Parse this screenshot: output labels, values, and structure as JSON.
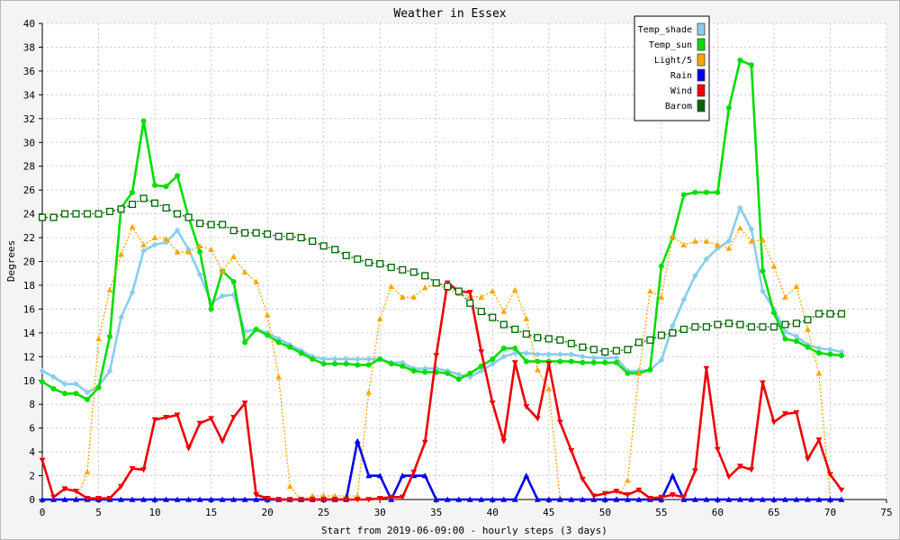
{
  "chart_data": {
    "type": "line",
    "title": "Weather in Essex",
    "xlabel": "Start from 2019-06-09:00 - hourly steps (3 days)",
    "ylabel": "Degrees",
    "xlim": [
      0,
      75
    ],
    "ylim": [
      0,
      40
    ],
    "xticks": [
      0,
      5,
      10,
      15,
      20,
      25,
      30,
      35,
      40,
      45,
      50,
      55,
      60,
      65,
      70,
      75
    ],
    "yticks": [
      0,
      2,
      4,
      6,
      8,
      10,
      12,
      14,
      16,
      18,
      20,
      22,
      24,
      26,
      28,
      30,
      32,
      34,
      36,
      38,
      40
    ],
    "grid": true,
    "legend_position": "top-right",
    "x": [
      0,
      1,
      2,
      3,
      4,
      5,
      6,
      7,
      8,
      9,
      10,
      11,
      12,
      13,
      14,
      15,
      16,
      17,
      18,
      19,
      20,
      21,
      22,
      23,
      24,
      25,
      26,
      27,
      28,
      29,
      30,
      31,
      32,
      33,
      34,
      35,
      36,
      37,
      38,
      39,
      40,
      41,
      42,
      43,
      44,
      45,
      46,
      47,
      48,
      49,
      50,
      51,
      52,
      53,
      54,
      55,
      56,
      57,
      58,
      59,
      60,
      61,
      62,
      63,
      64,
      65,
      66,
      67,
      68,
      69,
      70,
      71
    ],
    "series": [
      {
        "name": "Temp_shade",
        "color": "#87ceeb",
        "marker": "diamond",
        "dashed": false,
        "values": [
          10.8,
          10.3,
          9.7,
          9.7,
          9.0,
          9.5,
          10.8,
          15.3,
          17.4,
          20.9,
          21.4,
          21.6,
          22.6,
          21.0,
          18.9,
          16.5,
          17.1,
          17.2,
          14.1,
          14.3,
          14.0,
          13.5,
          13.0,
          12.5,
          12.0,
          11.8,
          11.8,
          11.8,
          11.8,
          11.8,
          11.8,
          11.5,
          11.5,
          11.0,
          11.0,
          11.0,
          10.8,
          10.5,
          10.3,
          10.8,
          11.4,
          12.0,
          12.3,
          12.3,
          12.2,
          12.2,
          12.2,
          12.2,
          12.0,
          11.9,
          11.9,
          11.9,
          10.8,
          10.8,
          10.9,
          11.7,
          14.6,
          16.8,
          18.8,
          20.2,
          21.1,
          21.7,
          24.5,
          22.7,
          17.5,
          16.0,
          14.1,
          13.7,
          13.0,
          12.7,
          12.6,
          12.4
        ]
      },
      {
        "name": "Temp_sun",
        "color": "#00dd00",
        "marker": "circle",
        "dashed": false,
        "values": [
          9.9,
          9.3,
          8.9,
          8.9,
          8.4,
          9.4,
          13.7,
          24.5,
          25.8,
          31.8,
          26.4,
          26.3,
          27.2,
          23.7,
          20.8,
          16.0,
          19.2,
          18.3,
          13.2,
          14.3,
          13.8,
          13.2,
          12.8,
          12.3,
          11.8,
          11.4,
          11.4,
          11.4,
          11.3,
          11.3,
          11.8,
          11.4,
          11.2,
          10.8,
          10.7,
          10.7,
          10.6,
          10.1,
          10.6,
          11.2,
          11.8,
          12.7,
          12.7,
          11.6,
          11.6,
          11.6,
          11.6,
          11.6,
          11.5,
          11.5,
          11.5,
          11.5,
          10.6,
          10.6,
          10.9,
          19.6,
          22.0,
          25.6,
          25.8,
          25.8,
          25.8,
          32.9,
          36.9,
          36.5,
          19.2,
          15.7,
          13.5,
          13.3,
          12.8,
          12.3,
          12.2,
          12.1
        ]
      },
      {
        "name": "Light/5",
        "color": "#ffa500",
        "marker": "triangle-up",
        "dashed": true,
        "values": [
          0,
          0,
          0,
          0,
          2.3,
          13.5,
          17.6,
          20.6,
          22.9,
          21.4,
          22.0,
          21.9,
          20.8,
          20.8,
          21.3,
          21.0,
          19.2,
          20.4,
          19.1,
          18.3,
          15.5,
          10.3,
          1.1,
          0,
          0.3,
          0.3,
          0.3,
          0.3,
          0.3,
          9.0,
          15.2,
          17.9,
          17.0,
          17.0,
          17.8,
          18.1,
          17.7,
          17.3,
          17.1,
          17.0,
          17.5,
          15.8,
          17.6,
          15.2,
          10.9,
          9.3,
          0.1,
          0,
          0,
          0,
          0,
          0,
          1.6,
          10.6,
          17.5,
          17.0,
          22.1,
          21.4,
          21.7,
          21.7,
          21.4,
          21.1,
          22.8,
          21.7,
          21.8,
          19.6,
          17.0,
          17.9,
          14.3,
          10.6,
          0,
          0
        ]
      },
      {
        "name": "Rain",
        "color": "#0000ee",
        "marker": "triangle-up",
        "dashed": false,
        "values": [
          0,
          0,
          0,
          0,
          0,
          0,
          0,
          0,
          0,
          0,
          0,
          0,
          0,
          0,
          0,
          0,
          0,
          0,
          0,
          0,
          0,
          0,
          0,
          0,
          0,
          0,
          0,
          0,
          4.9,
          2.0,
          2.0,
          0,
          2.0,
          2.0,
          2.0,
          0,
          0,
          0,
          0,
          0,
          0,
          0,
          0,
          2.0,
          0,
          0,
          0,
          0,
          0,
          0,
          0,
          0,
          0,
          0,
          0,
          0,
          2.0,
          0,
          0,
          0,
          0,
          0,
          0,
          0,
          0,
          0,
          0,
          0,
          0,
          0,
          0,
          0
        ]
      },
      {
        "name": "Wind",
        "color": "#ee0000",
        "marker": "triangle-down",
        "dashed": false,
        "values": [
          3.3,
          0.2,
          0.9,
          0.7,
          0.1,
          0.1,
          0.1,
          1.1,
          2.6,
          2.5,
          6.7,
          6.9,
          7.1,
          4.3,
          6.4,
          6.8,
          4.9,
          6.9,
          8.1,
          0.4,
          0.1,
          0,
          0,
          0,
          0,
          0,
          0,
          0,
          0,
          0,
          0.1,
          0.2,
          0.2,
          2.3,
          4.8,
          12.1,
          18.2,
          17.5,
          17.4,
          12.4,
          8.1,
          4.9,
          11.5,
          7.8,
          6.8,
          11.4,
          6.5,
          4.1,
          1.7,
          0.3,
          0.5,
          0.7,
          0.4,
          0.8,
          0.1,
          0.2,
          0.4,
          0.2,
          2.4,
          11.0,
          4.2,
          1.9,
          2.8,
          2.5,
          9.8,
          6.5,
          7.2,
          7.3,
          3.4,
          5.0,
          2.1,
          0.8
        ]
      },
      {
        "name": "Barom",
        "color": "#006400",
        "marker": "square",
        "dashed": true,
        "values": [
          23.7,
          23.7,
          24.0,
          24.0,
          24.0,
          24.0,
          24.2,
          24.4,
          24.8,
          25.3,
          24.9,
          24.5,
          24.0,
          23.7,
          23.2,
          23.1,
          23.1,
          22.6,
          22.4,
          22.4,
          22.3,
          22.1,
          22.1,
          22.0,
          21.7,
          21.3,
          21.0,
          20.5,
          20.2,
          19.9,
          19.8,
          19.5,
          19.3,
          19.1,
          18.8,
          18.2,
          17.9,
          17.5,
          16.5,
          15.8,
          15.3,
          14.7,
          14.3,
          13.9,
          13.6,
          13.5,
          13.4,
          13.1,
          12.8,
          12.6,
          12.4,
          12.5,
          12.6,
          13.2,
          13.4,
          13.8,
          14.0,
          14.3,
          14.5,
          14.5,
          14.7,
          14.8,
          14.7,
          14.5,
          14.5,
          14.5,
          14.7,
          14.8,
          15.1,
          15.6,
          15.6,
          15.6
        ]
      }
    ]
  }
}
